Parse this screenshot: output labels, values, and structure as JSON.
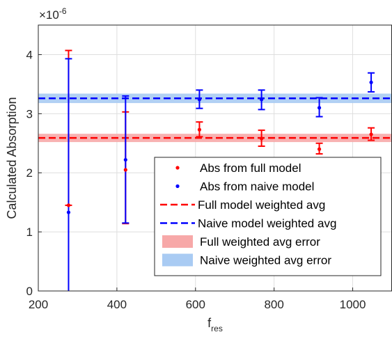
{
  "chart_data": {
    "type": "scatter",
    "title": "",
    "xlabel": "f",
    "xlabel_sub": "res",
    "ylabel": "Calculated Absorption",
    "y_exponent_label": "×10",
    "y_exponent": "-6",
    "xlim": [
      200,
      1100
    ],
    "ylim": [
      0,
      4.5
    ],
    "x_ticks": [
      200,
      400,
      600,
      800,
      1000
    ],
    "y_ticks": [
      0,
      1,
      2,
      3,
      4
    ],
    "grid": true,
    "legend_position": "bottom-right",
    "colors": {
      "full": "#ff0000",
      "naive": "#0000ff",
      "full_band": "#f7a8a8",
      "naive_band": "#a9cbf3"
    },
    "series": [
      {
        "name": "Abs from full model",
        "kind": "points",
        "color_key": "full",
        "points": [
          {
            "x": 277,
            "y": 1.45,
            "err_low": 1.45,
            "err_high": 4.07
          },
          {
            "x": 422,
            "y": 2.05,
            "err_low": 1.14,
            "err_high": 3.03
          },
          {
            "x": 610,
            "y": 2.73,
            "err_low": 2.61,
            "err_high": 2.86
          },
          {
            "x": 768,
            "y": 2.58,
            "err_low": 2.45,
            "err_high": 2.72
          },
          {
            "x": 915,
            "y": 2.4,
            "err_low": 2.32,
            "err_high": 2.5
          },
          {
            "x": 1047,
            "y": 2.65,
            "err_low": 2.55,
            "err_high": 2.76
          }
        ]
      },
      {
        "name": "Abs from naive model",
        "kind": "points",
        "color_key": "naive",
        "points": [
          {
            "x": 277,
            "y": 1.33,
            "err_low": 0,
            "err_high": 3.93
          },
          {
            "x": 422,
            "y": 2.22,
            "err_low": 1.15,
            "err_high": 3.3
          },
          {
            "x": 610,
            "y": 3.24,
            "err_low": 3.09,
            "err_high": 3.4
          },
          {
            "x": 768,
            "y": 3.24,
            "err_low": 3.07,
            "err_high": 3.4
          },
          {
            "x": 915,
            "y": 3.1,
            "err_low": 2.95,
            "err_high": 3.27
          },
          {
            "x": 1047,
            "y": 3.53,
            "err_low": 3.37,
            "err_high": 3.69
          }
        ]
      },
      {
        "name": "Full model weighted avg",
        "kind": "hline",
        "color_key": "full",
        "y": 2.59
      },
      {
        "name": "Naive model weighted avg",
        "kind": "hline",
        "color_key": "naive",
        "y": 3.26
      },
      {
        "name": "Full weighted avg error",
        "kind": "band",
        "color_key": "full_band",
        "y_low": 2.52,
        "y_high": 2.66
      },
      {
        "name": "Naive weighted avg error",
        "kind": "band",
        "color_key": "naive_band",
        "y_low": 3.18,
        "y_high": 3.34
      }
    ],
    "legend": [
      {
        "label": "Abs from full model",
        "symbol": "dot",
        "color_key": "full"
      },
      {
        "label": "Abs from naive model",
        "symbol": "dot",
        "color_key": "naive"
      },
      {
        "label": "Full model weighted avg",
        "symbol": "dash",
        "color_key": "full"
      },
      {
        "label": "Naive model weighted avg",
        "symbol": "dash",
        "color_key": "naive"
      },
      {
        "label": "Full weighted avg error",
        "symbol": "patch",
        "color_key": "full_band"
      },
      {
        "label": "Naive weighted avg error",
        "symbol": "patch",
        "color_key": "naive_band"
      }
    ]
  }
}
